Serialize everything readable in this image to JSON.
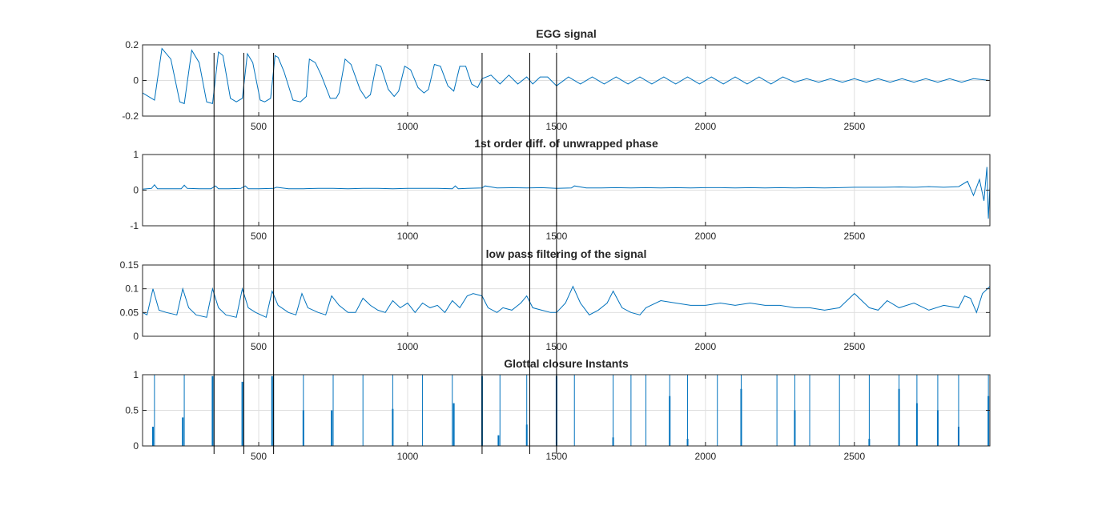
{
  "figure": {
    "colors": {
      "series": "#0072bd",
      "axis": "#262626",
      "grid": "#dfdfdf",
      "markers": "#000000",
      "background": "#ffffff"
    }
  },
  "chart_data": [
    {
      "type": "line",
      "title": "EGG signal",
      "xlabel": "",
      "ylabel": "",
      "xlim": [
        110,
        2955
      ],
      "ylim": [
        -0.2,
        0.2
      ],
      "xticks": [
        500,
        1000,
        1500,
        2000,
        2500
      ],
      "xtick_labels": [
        "500",
        "1000",
        "1500",
        "2000",
        "2500"
      ],
      "yticks": [
        -0.2,
        0,
        0.2
      ],
      "ytick_labels": [
        "-0.2",
        "0",
        "0.2"
      ],
      "grid": true,
      "series": [
        {
          "x": [
            110,
            150,
            175,
            205,
            235,
            250,
            275,
            300,
            325,
            345,
            365,
            380,
            405,
            425,
            445,
            462,
            480,
            505,
            520,
            540,
            555,
            565,
            585,
            615,
            640,
            660,
            670,
            690,
            710,
            740,
            760,
            770,
            790,
            810,
            840,
            860,
            875,
            895,
            910,
            935,
            955,
            970,
            990,
            1010,
            1035,
            1055,
            1070,
            1090,
            1110,
            1135,
            1155,
            1175,
            1195,
            1215,
            1235,
            1250,
            1280,
            1310,
            1340,
            1370,
            1400,
            1420,
            1445,
            1470,
            1500,
            1540,
            1580,
            1620,
            1660,
            1700,
            1740,
            1780,
            1820,
            1860,
            1900,
            1940,
            1980,
            2020,
            2060,
            2100,
            2140,
            2180,
            2220,
            2260,
            2300,
            2340,
            2380,
            2420,
            2460,
            2500,
            2540,
            2580,
            2620,
            2660,
            2700,
            2740,
            2780,
            2820,
            2860,
            2900,
            2955
          ],
          "values": [
            -0.07,
            -0.11,
            0.18,
            0.12,
            -0.12,
            -0.13,
            0.17,
            0.1,
            -0.12,
            -0.13,
            0.16,
            0.14,
            -0.1,
            -0.12,
            -0.1,
            0.15,
            0.1,
            -0.11,
            -0.12,
            -0.1,
            0.14,
            0.13,
            0.05,
            -0.11,
            -0.12,
            -0.09,
            0.12,
            0.1,
            0.03,
            -0.1,
            -0.1,
            -0.07,
            0.12,
            0.09,
            -0.05,
            -0.1,
            -0.08,
            0.09,
            0.08,
            -0.05,
            -0.09,
            -0.06,
            0.08,
            0.06,
            -0.04,
            -0.07,
            -0.05,
            0.09,
            0.08,
            -0.03,
            -0.06,
            0.08,
            0.08,
            -0.02,
            -0.04,
            0.01,
            0.03,
            -0.02,
            0.03,
            -0.02,
            0.02,
            -0.02,
            0.02,
            0.02,
            -0.03,
            0.02,
            -0.02,
            0.02,
            -0.02,
            0.02,
            -0.02,
            0.02,
            -0.02,
            0.02,
            -0.02,
            0.02,
            -0.02,
            0.02,
            -0.02,
            0.02,
            -0.02,
            0.02,
            -0.02,
            0.02,
            -0.01,
            0.01,
            -0.01,
            0.01,
            -0.01,
            0.01,
            -0.01,
            0.01,
            -0.01,
            0.01,
            -0.01,
            0.01,
            -0.01,
            0.01,
            -0.01,
            0.01,
            0
          ]
        }
      ]
    },
    {
      "type": "line",
      "title": "1st order diff. of unwrapped phase",
      "xlabel": "",
      "ylabel": "",
      "xlim": [
        110,
        2955
      ],
      "ylim": [
        -1,
        1
      ],
      "xticks": [
        500,
        1000,
        1500,
        2000,
        2500
      ],
      "xtick_labels": [
        "500",
        "1000",
        "1500",
        "2000",
        "2500"
      ],
      "yticks": [
        -1,
        0,
        1
      ],
      "ytick_labels": [
        "-1",
        "0",
        "1"
      ],
      "grid": true,
      "series": [
        {
          "x": [
            110,
            140,
            150,
            160,
            200,
            240,
            250,
            260,
            300,
            340,
            355,
            365,
            400,
            440,
            455,
            465,
            500,
            550,
            560,
            600,
            650,
            700,
            750,
            800,
            850,
            900,
            950,
            1000,
            1050,
            1100,
            1150,
            1160,
            1170,
            1200,
            1250,
            1260,
            1300,
            1350,
            1400,
            1450,
            1500,
            1550,
            1560,
            1600,
            1650,
            1700,
            1750,
            1800,
            1850,
            1900,
            1950,
            2000,
            2050,
            2100,
            2150,
            2200,
            2250,
            2300,
            2350,
            2400,
            2450,
            2500,
            2550,
            2600,
            2650,
            2700,
            2750,
            2800,
            2850,
            2880,
            2900,
            2920,
            2935,
            2945,
            2950,
            2955
          ],
          "values": [
            0.03,
            0.05,
            0.15,
            0.04,
            0.04,
            0.04,
            0.14,
            0.05,
            0.04,
            0.04,
            0.12,
            0.04,
            0.04,
            0.05,
            0.12,
            0.04,
            0.04,
            0.05,
            0.08,
            0.04,
            0.04,
            0.05,
            0.05,
            0.04,
            0.05,
            0.05,
            0.04,
            0.05,
            0.05,
            0.05,
            0.04,
            0.12,
            0.04,
            0.05,
            0.06,
            0.12,
            0.06,
            0.07,
            0.06,
            0.07,
            0.05,
            0.06,
            0.12,
            0.06,
            0.06,
            0.07,
            0.06,
            0.07,
            0.06,
            0.07,
            0.06,
            0.07,
            0.07,
            0.06,
            0.07,
            0.06,
            0.07,
            0.06,
            0.07,
            0.06,
            0.07,
            0.08,
            0.08,
            0.08,
            0.09,
            0.08,
            0.1,
            0.08,
            0.1,
            0.25,
            -0.15,
            0.3,
            -0.3,
            0.65,
            -0.8,
            0.1
          ]
        }
      ]
    },
    {
      "type": "line",
      "title": "low pass filtering of the signal",
      "xlabel": "",
      "ylabel": "",
      "xlim": [
        110,
        2955
      ],
      "ylim": [
        0,
        0.15
      ],
      "xticks": [
        500,
        1000,
        1500,
        2000,
        2500
      ],
      "xtick_labels": [
        "500",
        "1000",
        "1500",
        "2000",
        "2500"
      ],
      "yticks": [
        0,
        0.05,
        0.1,
        0.15
      ],
      "ytick_labels": [
        "0",
        "0.05",
        "0.1",
        "0.15"
      ],
      "grid": true,
      "series": [
        {
          "x": [
            110,
            125,
            145,
            165,
            190,
            225,
            245,
            265,
            290,
            325,
            345,
            365,
            390,
            425,
            445,
            465,
            490,
            525,
            545,
            565,
            600,
            625,
            645,
            665,
            700,
            725,
            745,
            770,
            800,
            825,
            850,
            875,
            900,
            925,
            950,
            975,
            1000,
            1025,
            1050,
            1075,
            1100,
            1125,
            1150,
            1175,
            1200,
            1220,
            1250,
            1270,
            1300,
            1320,
            1350,
            1380,
            1400,
            1420,
            1450,
            1480,
            1500,
            1530,
            1555,
            1580,
            1610,
            1640,
            1670,
            1690,
            1720,
            1750,
            1780,
            1800,
            1850,
            1900,
            1950,
            2000,
            2050,
            2100,
            2150,
            2200,
            2250,
            2300,
            2350,
            2400,
            2450,
            2500,
            2550,
            2580,
            2610,
            2650,
            2700,
            2750,
            2800,
            2850,
            2870,
            2890,
            2910,
            2930,
            2955
          ],
          "values": [
            0.05,
            0.045,
            0.1,
            0.055,
            0.05,
            0.045,
            0.1,
            0.06,
            0.045,
            0.04,
            0.1,
            0.06,
            0.045,
            0.04,
            0.1,
            0.06,
            0.05,
            0.04,
            0.095,
            0.065,
            0.05,
            0.045,
            0.09,
            0.06,
            0.05,
            0.045,
            0.085,
            0.065,
            0.05,
            0.05,
            0.08,
            0.065,
            0.055,
            0.05,
            0.075,
            0.06,
            0.07,
            0.05,
            0.07,
            0.06,
            0.065,
            0.05,
            0.075,
            0.06,
            0.085,
            0.09,
            0.085,
            0.06,
            0.05,
            0.06,
            0.055,
            0.07,
            0.085,
            0.06,
            0.055,
            0.05,
            0.05,
            0.07,
            0.105,
            0.07,
            0.045,
            0.055,
            0.07,
            0.095,
            0.06,
            0.05,
            0.045,
            0.06,
            0.075,
            0.07,
            0.065,
            0.065,
            0.07,
            0.065,
            0.07,
            0.065,
            0.065,
            0.06,
            0.06,
            0.055,
            0.06,
            0.09,
            0.06,
            0.055,
            0.075,
            0.06,
            0.07,
            0.055,
            0.065,
            0.06,
            0.085,
            0.08,
            0.05,
            0.09,
            0.105
          ]
        }
      ]
    },
    {
      "type": "bar",
      "title": "Glottal closure Instants",
      "xlabel": "",
      "ylabel": "",
      "xlim": [
        110,
        2955
      ],
      "ylim": [
        0,
        1
      ],
      "xticks": [
        500,
        1000,
        1500,
        2000,
        2500
      ],
      "xtick_labels": [
        "500",
        "1000",
        "1500",
        "2000",
        "2500"
      ],
      "yticks": [
        0,
        0.5,
        1
      ],
      "ytick_labels": [
        "0",
        "0.5",
        "1"
      ],
      "grid": true,
      "series": [
        {
          "x": [
            150,
            250,
            350,
            450,
            550,
            650,
            750,
            850,
            950,
            1050,
            1150,
            1250,
            1310,
            1400,
            1500,
            1560,
            1690,
            1750,
            1800,
            1880,
            1940,
            2040,
            2120,
            2240,
            2300,
            2350,
            2450,
            2550,
            2650,
            2710,
            2780,
            2850,
            2950
          ],
          "values": [
            1,
            1,
            1,
            1,
            1,
            1,
            1,
            1,
            1,
            1,
            1,
            1,
            1,
            1,
            1,
            1,
            1,
            1,
            1,
            1,
            1,
            1,
            1,
            1,
            1,
            1,
            1,
            1,
            1,
            1,
            1,
            1,
            1
          ],
          "partial_x": [
            145,
            245,
            345,
            445,
            545,
            650,
            745,
            950,
            1155,
            1250,
            1305,
            1400,
            1500,
            1690,
            1880,
            1940,
            2120,
            2300,
            2550,
            2650,
            2710,
            2780,
            2850,
            2950
          ],
          "partial_values": [
            0.27,
            0.4,
            0.98,
            0.9,
            0.98,
            0.5,
            0.5,
            0.52,
            0.6,
            0.98,
            0.15,
            0.3,
            0.98,
            0.12,
            0.7,
            0.1,
            0.8,
            0.5,
            0.1,
            0.8,
            0.6,
            0.5,
            0.27,
            0.7
          ]
        }
      ]
    }
  ],
  "marker_lines": {
    "x": [
      350,
      450,
      550,
      1250,
      1410,
      1500
    ]
  }
}
